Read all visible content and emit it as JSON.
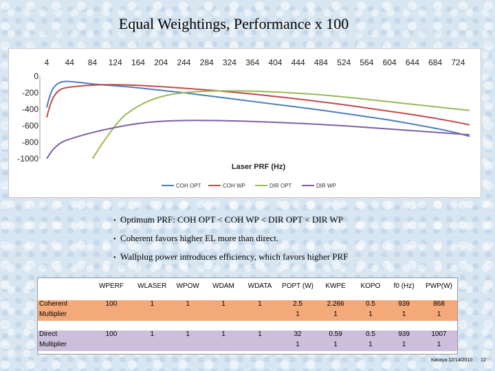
{
  "title": "Equal Weightings, Performance x 100",
  "chart_data": {
    "type": "line",
    "title": "",
    "xlabel": "Laser PRF (Hz)",
    "ylabel": "",
    "xlim": [
      4,
      744
    ],
    "ylim": [
      -1000,
      0
    ],
    "x_ticks": [
      "4",
      "44",
      "84",
      "124",
      "164",
      "204",
      "244",
      "284",
      "324",
      "364",
      "404",
      "444",
      "484",
      "524",
      "564",
      "604",
      "644",
      "684",
      "724"
    ],
    "y_ticks": [
      "0",
      "-200",
      "-400",
      "-600",
      "-800",
      "-1000"
    ],
    "x": [
      4,
      10,
      20,
      30,
      44,
      84,
      124,
      164,
      204,
      244,
      284,
      324,
      364,
      404,
      444,
      484,
      524,
      564,
      604,
      644,
      684,
      724,
      744
    ],
    "series": [
      {
        "name": "COH OPT",
        "color": "#4a7ebb",
        "values": [
          -380,
          -200,
          -100,
          -65,
          -60,
          -95,
          -115,
          -140,
          -170,
          -200,
          -235,
          -270,
          -305,
          -340,
          -375,
          -410,
          -450,
          -490,
          -530,
          -580,
          -630,
          -690,
          -730
        ]
      },
      {
        "name": "COH WP",
        "color": "#be4b48",
        "values": [
          -500,
          -330,
          -200,
          -150,
          -130,
          -105,
          -100,
          -110,
          -125,
          -145,
          -165,
          -190,
          -215,
          -245,
          -275,
          -310,
          -345,
          -385,
          -425,
          -465,
          -510,
          -560,
          -590
        ]
      },
      {
        "name": "DIR OPT",
        "color": "#98b954",
        "values": [
          null,
          null,
          null,
          null,
          null,
          -1000,
          -560,
          -350,
          -240,
          -195,
          -180,
          -177,
          -180,
          -190,
          -205,
          -225,
          -250,
          -280,
          -310,
          -340,
          -370,
          -400,
          -415
        ]
      },
      {
        "name": "DIR WP",
        "color": "#7d60a0",
        "values": [
          -1000,
          -930,
          -850,
          -800,
          -760,
          -680,
          -620,
          -570,
          -545,
          -535,
          -535,
          -540,
          -548,
          -558,
          -570,
          -585,
          -600,
          -620,
          -640,
          -660,
          -680,
          -700,
          -710
        ]
      }
    ],
    "legend_position": "bottom",
    "grid": false
  },
  "bullets": [
    "Optimum PRF: COH OPT < COH WP < DIR OPT < DIR WP",
    "Coherent favors higher EL more than direct.",
    "Wallplug power introduces efficiency, which favors higher PRF"
  ],
  "table": {
    "headers": [
      "",
      "WPERF",
      "WLASER",
      "WPOW",
      "WDAM",
      "WDATA",
      "POPT (W)",
      "KWPE",
      "KOPO",
      "f0 (Hz)",
      "PWP(W)"
    ],
    "rows": [
      {
        "label_line1": "Coherent",
        "label_line2": "Multiplier",
        "line1": [
          "100",
          "1",
          "1",
          "1",
          "1",
          "2.5",
          "2.266",
          "0.5",
          "939",
          "868"
        ],
        "line2": [
          "",
          "",
          "",
          "",
          "",
          "1",
          "1",
          "1",
          "1",
          "1"
        ]
      },
      {
        "label_line1": "Direct",
        "label_line2": "Multiplier",
        "line1": [
          "100",
          "1",
          "1",
          "1",
          "1",
          "32",
          "0.59",
          "0.5",
          "939",
          "1007"
        ],
        "line2": [
          "",
          "",
          "",
          "",
          "",
          "1",
          "1",
          "1",
          "1",
          "1"
        ]
      }
    ]
  },
  "footer": "Kavaya 12/14/2010",
  "page_number": "12"
}
